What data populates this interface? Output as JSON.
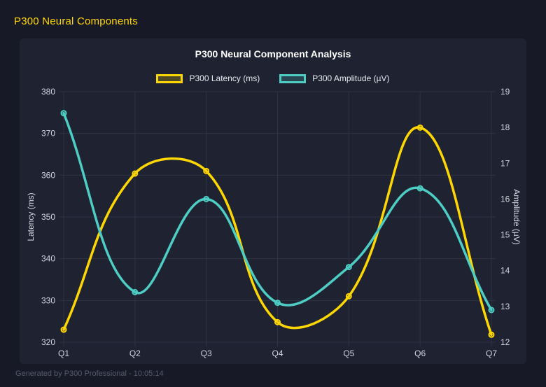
{
  "page": {
    "header_title": "P300 Neural Components",
    "footer_text": "Generated by P300 Professional - 10:05:14"
  },
  "colors": {
    "background": "#171a26",
    "card_background": "#1e2231",
    "header_text": "#ffd700",
    "footer_text": "#565b6e",
    "title_text": "#ffffff",
    "accent_yellow": "#ffd700",
    "accent_teal": "#4ecdc4"
  },
  "chart_data": {
    "type": "line",
    "title": "P300 Neural Component Analysis",
    "categories": [
      "Q1",
      "Q2",
      "Q3",
      "Q4",
      "Q5",
      "Q6",
      "Q7"
    ],
    "series": [
      {
        "id": "latency",
        "name": "P300 Latency (ms)",
        "axis": "left",
        "color": "#ffd700",
        "fill": "rgba(255,215,0,0.22)",
        "values": [
          323.0,
          360.4,
          361.0,
          324.8,
          331.0,
          371.4,
          321.8
        ]
      },
      {
        "id": "amplitude",
        "name": "P300 Amplitude (µV)",
        "axis": "right",
        "color": "#4ecdc4",
        "fill": "rgba(78,205,196,0.22)",
        "values": [
          18.4,
          13.4,
          16.0,
          13.1,
          14.1,
          16.3,
          12.9
        ]
      }
    ],
    "left_axis": {
      "label": "Latency (ms)",
      "min": 320,
      "max": 380,
      "step": 10
    },
    "right_axis": {
      "label": "Amplitude (µV)",
      "min": 12,
      "max": 19,
      "step": 1
    },
    "grid": true,
    "grid_color": "#2e3343",
    "tick_color": "#d2d5de",
    "legend_position": "top",
    "curve": "smooth"
  }
}
